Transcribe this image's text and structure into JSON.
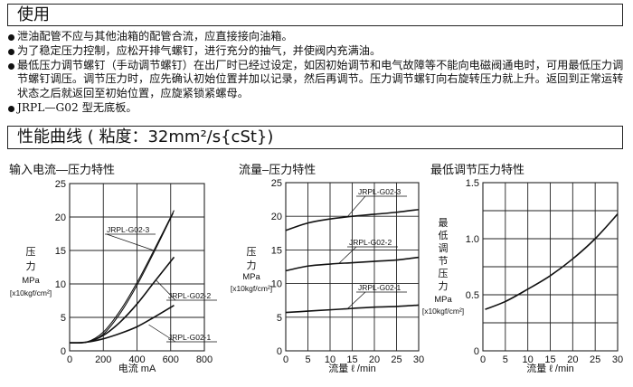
{
  "section_usage": {
    "title": "使用",
    "bullets": [
      "泄油配管不应与其他油箱的配管合流，应直接接向油箱。",
      "为了稳定压力控制，应松开排气螺钉，进行充分的抽气，并使阀内充满油。",
      "最低压力调节螺钉（手动调节螺钉）在出厂时已经过设定，如因初始调节和电气故障等不能向电磁阀通电时，可用最低压力调节螺钉调压。调节压力时，应先确认初始位置并加以记录，然后再调节。压力调节螺钉向右旋转压力就上升。返回到正常运转状态之后就返回至初始位置，应旋紧锁紧螺母。",
      "JRPL—G02 型无底板。"
    ]
  },
  "section_curves": {
    "title": "性能曲线 ( 粘度：32mm²/s{cSt})"
  },
  "chart_data": [
    {
      "type": "line",
      "title": "输入电流—压力特性",
      "xlabel": "电流 mA",
      "ylabel": [
        "压",
        "力",
        "MPa",
        "[x10kgf/cm²]"
      ],
      "xlim": [
        0,
        800
      ],
      "ylim": [
        0,
        25
      ],
      "xticks": [
        0,
        200,
        400,
        600,
        800
      ],
      "yticks": [
        0,
        5,
        10,
        15,
        20,
        25
      ],
      "grid": true,
      "series": [
        {
          "name": "JRPL-G02-3",
          "x": [
            0,
            100,
            200,
            300,
            400,
            500,
            620
          ],
          "y": [
            1.2,
            1.3,
            2.8,
            6.0,
            10.2,
            15.0,
            21.0
          ]
        },
        {
          "name": "",
          "x": [
            0,
            100,
            200,
            300,
            400,
            500,
            615
          ],
          "y": [
            1.2,
            1.3,
            2.5,
            5.6,
            9.8,
            14.7,
            20.6
          ]
        },
        {
          "name": "JRPL-G02-2",
          "x": [
            0,
            100,
            200,
            300,
            400,
            500,
            620
          ],
          "y": [
            1.2,
            1.3,
            2.3,
            4.3,
            7.0,
            10.2,
            14.0
          ]
        },
        {
          "name": "JRPL-G02-1",
          "x": [
            0,
            100,
            200,
            300,
            400,
            500,
            620
          ],
          "y": [
            1.2,
            1.3,
            1.8,
            2.6,
            3.6,
            5.0,
            6.8
          ]
        }
      ]
    },
    {
      "type": "line",
      "title": "流量–压力特性",
      "xlabel": "流量 ℓ /min",
      "ylabel": [
        "压",
        "力",
        "MPa",
        "[x10kgf/cm²]"
      ],
      "xlim": [
        0,
        30
      ],
      "ylim": [
        0,
        25
      ],
      "xticks": [
        0,
        5,
        10,
        15,
        20,
        25,
        30
      ],
      "yticks": [
        0,
        5,
        10,
        15,
        20,
        25
      ],
      "grid": true,
      "series": [
        {
          "name": "JRPL-G02-3",
          "x": [
            0,
            5,
            10,
            15,
            20,
            25,
            30
          ],
          "y": [
            17.9,
            19.0,
            19.6,
            20.0,
            20.3,
            20.6,
            21.0
          ]
        },
        {
          "name": "JRPL-G02-2",
          "x": [
            0,
            5,
            10,
            15,
            20,
            25,
            30
          ],
          "y": [
            11.9,
            12.6,
            12.9,
            13.1,
            13.3,
            13.5,
            13.9
          ]
        },
        {
          "name": "JRPL-G02-1",
          "x": [
            0,
            5,
            10,
            15,
            20,
            25,
            30
          ],
          "y": [
            5.7,
            5.9,
            6.1,
            6.3,
            6.5,
            6.6,
            6.8
          ]
        }
      ]
    },
    {
      "type": "line",
      "title": "最低调节压力特性",
      "xlabel": "流量 ℓ /min",
      "ylabel": [
        "最",
        "低",
        "调",
        "节",
        "压",
        "力",
        "MPa",
        "[x10kgf/cm²]"
      ],
      "xlim": [
        0,
        30
      ],
      "ylim": [
        0,
        1.5
      ],
      "xticks": [
        0,
        5,
        10,
        15,
        20,
        25,
        30
      ],
      "yticks": [
        0,
        0.5,
        1.0,
        1.5
      ],
      "ytick_labels": [
        "0",
        "0.5",
        "1.0",
        "1.5"
      ],
      "ygrid_step": 0.25,
      "grid": true,
      "series": [
        {
          "name": "",
          "x": [
            0.5,
            5,
            10,
            15,
            20,
            25,
            30
          ],
          "y": [
            0.37,
            0.44,
            0.55,
            0.67,
            0.82,
            1.0,
            1.22
          ]
        }
      ]
    }
  ]
}
